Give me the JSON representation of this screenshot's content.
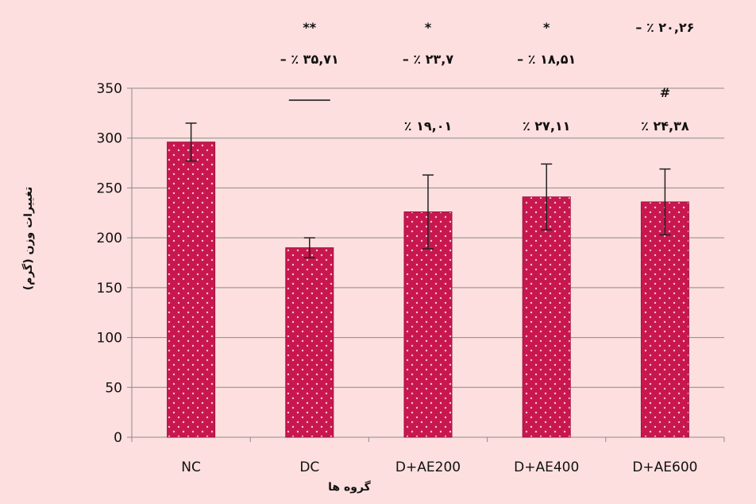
{
  "chart_data": {
    "type": "bar",
    "xlabel": "گروه ها",
    "ylabel": "تغییرات وزن (گرم)",
    "ylim": [
      0,
      350
    ],
    "yticks": [
      0,
      50,
      100,
      150,
      200,
      250,
      300,
      350
    ],
    "grid": true,
    "categories": [
      "NC",
      "DC",
      "D+AE200",
      "D+AE400",
      "D+AE600"
    ],
    "values": [
      296,
      190,
      226,
      241,
      236
    ],
    "errors": [
      19,
      10,
      37,
      33,
      33
    ],
    "bar_color": "#c8174f",
    "annotations": {
      "row1": [
        "",
        "**",
        "*",
        "*",
        "– ٪ ۲۰,۲۶"
      ],
      "row2": [
        "",
        "– ٪ ۳۵,۷۱",
        "– ٪ ۲۳,۷",
        "– ٪ ۱۸,۵۱",
        ""
      ],
      "row3": [
        "",
        "——",
        "",
        "",
        "#"
      ],
      "row4": [
        "",
        "",
        "٪ ۱۹,۰۱",
        "٪ ۲۷,۱۱",
        "٪ ۲۴,۳۸"
      ]
    }
  }
}
